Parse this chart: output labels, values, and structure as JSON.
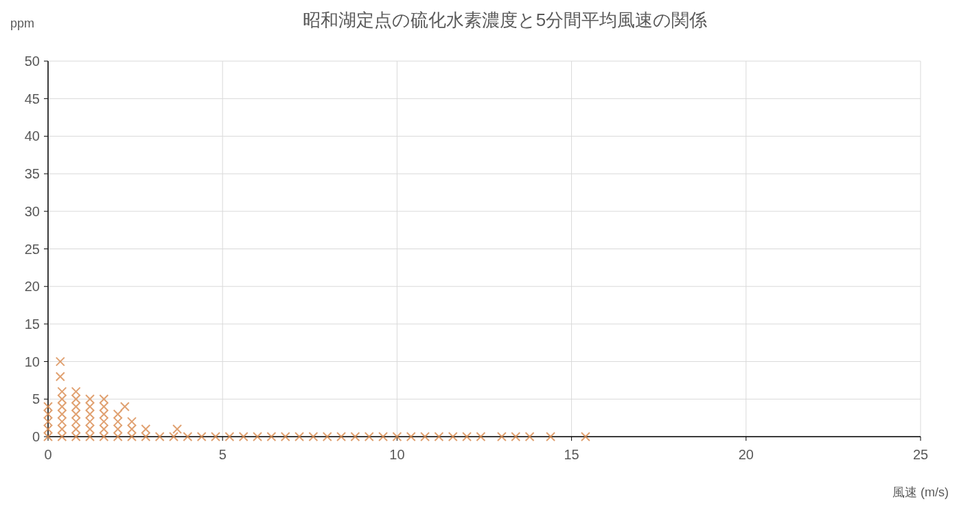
{
  "chart_data": {
    "type": "scatter",
    "title": "昭和湖定点の硫化水素濃度と5分間平均風速の関係",
    "ylabel": "ppm",
    "xlabel": "風速 (m/s)",
    "xlim": [
      0,
      25
    ],
    "xticks": [
      0,
      5,
      10,
      15,
      20,
      25
    ],
    "ylim": [
      0,
      50
    ],
    "yticks": [
      0,
      5,
      10,
      15,
      20,
      25,
      30,
      35,
      40,
      45,
      50
    ],
    "grid": true,
    "marker": "cross",
    "series": [
      {
        "color": "#d98a4e",
        "x": [
          0,
          0.4,
          0.8,
          1.2,
          1.6,
          2,
          2.4,
          2.8,
          3.2,
          3.6,
          4,
          4.4,
          4.8,
          5.2,
          5.6,
          6,
          6.4,
          6.8,
          7.2,
          7.6,
          8,
          8.4,
          8.8,
          9.2,
          9.6,
          10,
          10.4,
          10.8,
          11.2,
          11.6,
          12,
          12.4,
          13,
          13.4,
          13.8,
          14.4,
          15.4,
          0,
          0.4,
          0.8,
          1.2,
          1.6,
          2,
          2.4,
          2.8,
          3.7,
          0,
          0.4,
          0.8,
          1.2,
          1.6,
          2,
          2.4,
          0,
          0.4,
          0.8,
          1.2,
          1.6,
          2,
          0,
          0.4,
          0.8,
          1.2,
          1.6,
          2.2,
          0.4,
          0.8,
          1.2,
          1.6,
          0.4,
          0.8,
          0.35,
          0.35
        ],
        "values": [
          0,
          0,
          0,
          0,
          0,
          0,
          0,
          0,
          0,
          0,
          0,
          0,
          0,
          0,
          0,
          0,
          0,
          0,
          0,
          0,
          0,
          0,
          0,
          0,
          0,
          0,
          0,
          0,
          0,
          0,
          0,
          0,
          0,
          0,
          0,
          0,
          0,
          1,
          1,
          1,
          1,
          1,
          1,
          1,
          1,
          1,
          2,
          2,
          2,
          2,
          2,
          2,
          2,
          3,
          3,
          3,
          3,
          3,
          3,
          4,
          4,
          4,
          4,
          4,
          4,
          5,
          5,
          5,
          5,
          6,
          6,
          8,
          10
        ]
      }
    ]
  }
}
